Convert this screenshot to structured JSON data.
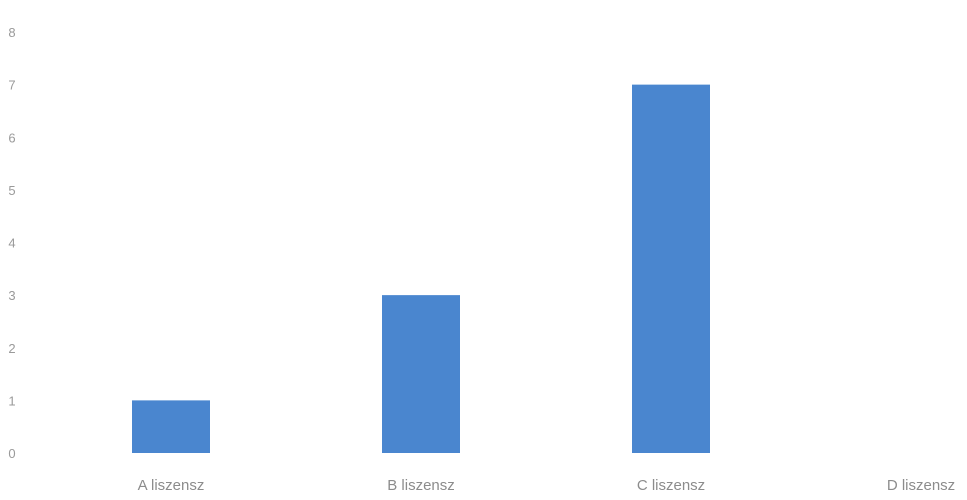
{
  "chart_data": {
    "type": "bar",
    "categories": [
      "A liszensz",
      "B liszensz",
      "C liszensz",
      "D liszensz"
    ],
    "values": [
      1,
      3,
      7,
      0
    ],
    "title": "",
    "xlabel": "",
    "ylabel": "",
    "ylim": [
      0,
      8
    ],
    "yticks": [
      "0",
      "1",
      "2",
      "3",
      "4",
      "5",
      "6",
      "7",
      "8"
    ],
    "grid": false,
    "legend": "none",
    "colors": {
      "bar": "#4a86cf",
      "tick_text": "#9a9a9a",
      "category_text": "#8c8c8c"
    }
  }
}
